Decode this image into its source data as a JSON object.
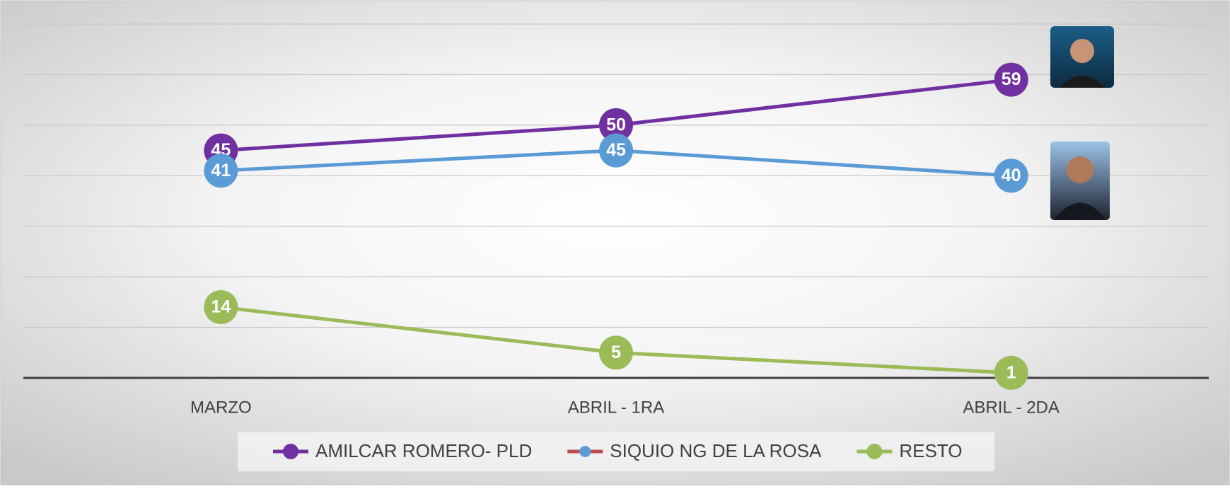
{
  "chart_data": {
    "type": "line",
    "categories": [
      "MARZO",
      "ABRIL - 1RA",
      "ABRIL - 2DA"
    ],
    "series": [
      {
        "name": "AMILCAR ROMERO- PLD",
        "color": "#7030a0",
        "values": [
          45,
          50,
          59
        ]
      },
      {
        "name": "SIQUIO NG DE LA ROSA",
        "color": "#5b9bd5",
        "legend_line_color": "#c0504d",
        "values": [
          41,
          45,
          40
        ]
      },
      {
        "name": "RESTO",
        "color": "#9bbb59",
        "values": [
          14,
          5,
          1
        ]
      }
    ],
    "ylim": [
      0,
      70
    ],
    "yticks": [
      0,
      10,
      20,
      30,
      40,
      50,
      60,
      70
    ],
    "grid": true,
    "legend": "bottom",
    "data_labels": true
  }
}
